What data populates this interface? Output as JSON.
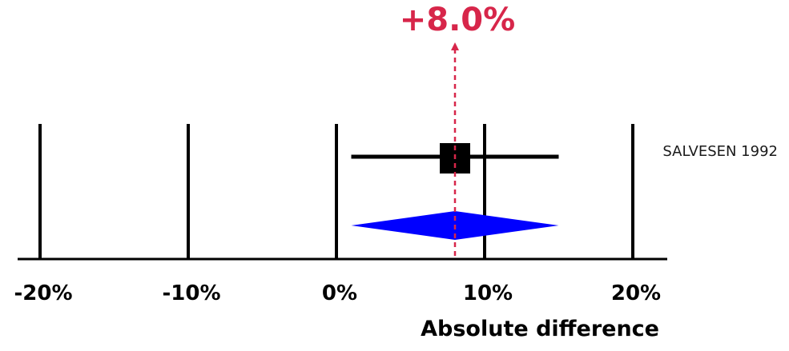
{
  "chart_data": {
    "type": "forest",
    "xlabel": "Absolute difference",
    "x_unit": "%",
    "xlim": [
      -20,
      20
    ],
    "xticks": [
      -20,
      -10,
      0,
      10,
      20
    ],
    "tick_labels": [
      "-20%",
      "-10%",
      "0%",
      "10%",
      "20%"
    ],
    "grid": "vertical lines at ticks",
    "studies": [
      {
        "name": "SALVESEN 1992",
        "estimate": 8.0,
        "ci_low": 1.0,
        "ci_high": 15.0
      }
    ],
    "pooled": {
      "estimate": 8.0,
      "ci_low": 1.0,
      "ci_high": 15.0
    },
    "reference_line": {
      "value": 8.0,
      "label": "+8.0%"
    },
    "colors": {
      "study_marker": "#000000",
      "pooled_diamond": "#0000ff",
      "reference_line": "#d7264a",
      "axis": "#000000"
    }
  }
}
